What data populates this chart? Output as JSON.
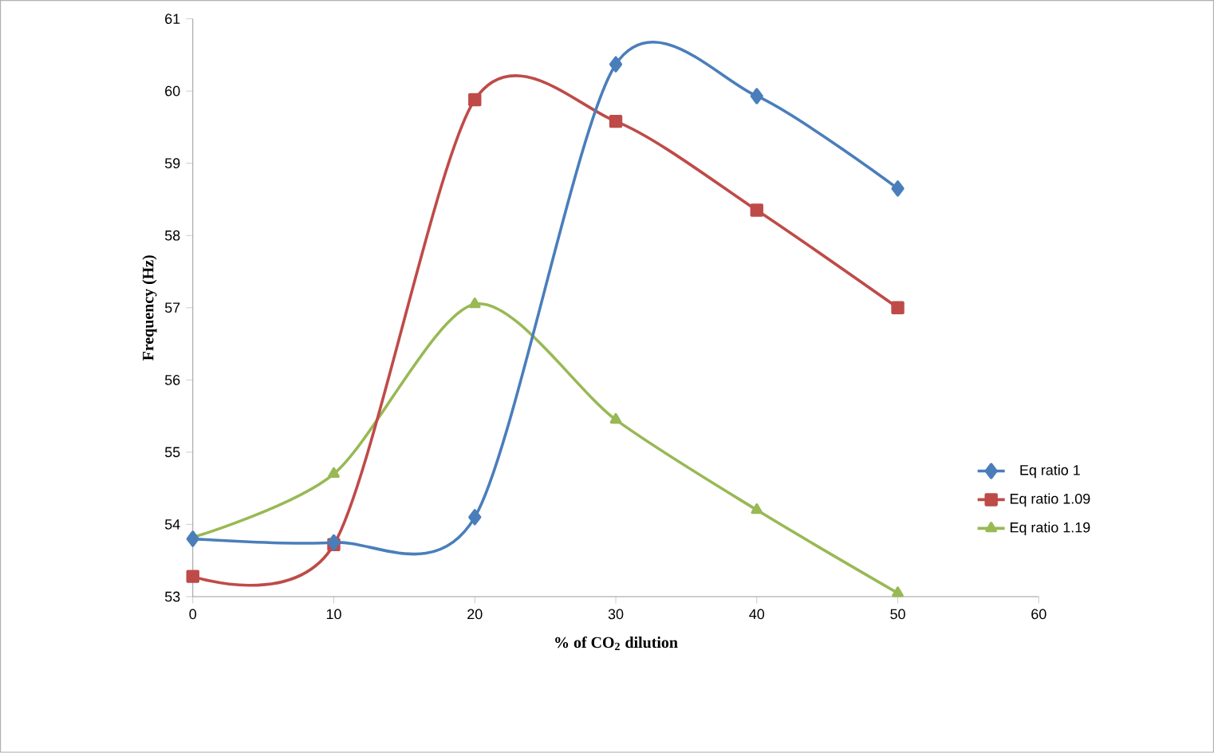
{
  "chart_data": {
    "type": "line",
    "xlabel": "% of CO$_{2}$ dilution",
    "ylabel": "Frequency (Hz)",
    "x": [
      0,
      10,
      20,
      30,
      40,
      50
    ],
    "series": [
      {
        "name": "Eq ratio 1",
        "color": "#4a7ebb",
        "marker": "diamond",
        "values": [
          53.8,
          53.75,
          54.1,
          60.37,
          59.93,
          58.65
        ]
      },
      {
        "name": "Eq ratio 1.09",
        "color": "#be4b48",
        "marker": "square",
        "values": [
          53.28,
          53.72,
          59.88,
          59.58,
          58.35,
          57.0
        ]
      },
      {
        "name": "Eq ratio 1.19",
        "color": "#98b954",
        "marker": "triangle",
        "values": [
          53.82,
          54.7,
          57.05,
          55.45,
          54.2,
          53.05
        ]
      }
    ],
    "xlim": [
      0,
      60
    ],
    "ylim": [
      53,
      61
    ],
    "xticks": [
      0,
      10,
      20,
      30,
      40,
      50,
      60
    ],
    "yticks": [
      53,
      54,
      55,
      56,
      57,
      58,
      59,
      60,
      61
    ],
    "grid": false,
    "legend": "right",
    "line_style": "solid"
  }
}
